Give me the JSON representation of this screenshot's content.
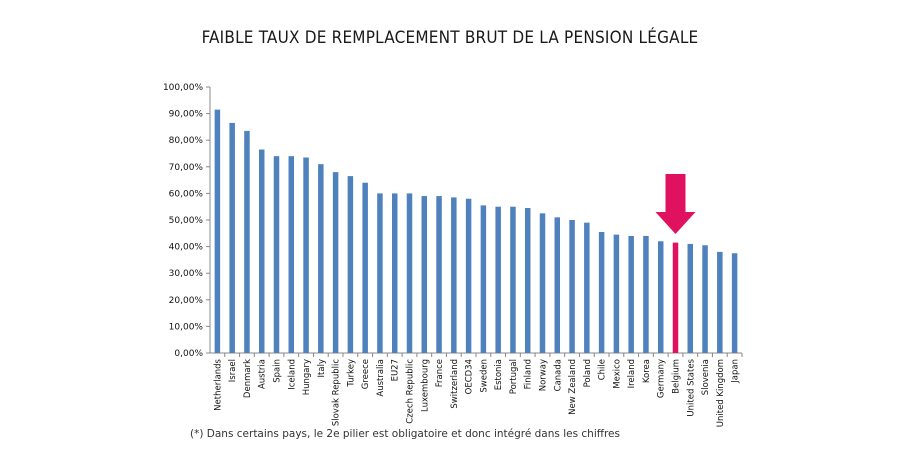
{
  "title": "FAIBLE TAUX DE REMPLACEMENT BRUT DE LA PENSION LÉGALE",
  "footnote": "(*) Dans certains pays, le 2e pilier est obligatoire et donc intégré dans les chiffres",
  "chart_data": {
    "type": "bar",
    "title": "FAIBLE TAUX DE REMPLACEMENT BRUT DE LA PENSION LÉGALE",
    "xlabel": "",
    "ylabel": "",
    "ylim": [
      0,
      100
    ],
    "yticks": [
      "0,00%",
      "10,00%",
      "20,00%",
      "30,00%",
      "40,00%",
      "50,00%",
      "60,00%",
      "70,00%",
      "80,00%",
      "90,00%",
      "100,00%"
    ],
    "grid": false,
    "bar_color": "#4f81bd",
    "highlight_color": "#e0115f",
    "highlight_category": "Belgium",
    "categories": [
      "Netherlands",
      "Israel",
      "Denmark",
      "Austria",
      "Spain",
      "Iceland",
      "Hungary",
      "Italy",
      "Slovak Republic",
      "Turkey",
      "Greece",
      "Australia",
      "EU27",
      "Czech Republic",
      "Luxembourg",
      "France",
      "Switzerland",
      "OECD34",
      "Sweden",
      "Estonia",
      "Portugal",
      "Finland",
      "Norway",
      "Canada",
      "New Zealand",
      "Poland",
      "Chile",
      "Mexico",
      "Ireland",
      "Korea",
      "Germany",
      "Belgium",
      "United States",
      "Slovenia",
      "United Kingdom",
      "Japan"
    ],
    "values": [
      91.5,
      86.5,
      83.5,
      76.5,
      74.0,
      74.0,
      73.5,
      71.0,
      68.0,
      66.5,
      64.0,
      60.0,
      60.0,
      60.0,
      59.0,
      59.0,
      58.5,
      58.0,
      55.5,
      55.0,
      55.0,
      54.5,
      52.5,
      51.0,
      50.0,
      49.0,
      45.5,
      44.5,
      44.0,
      44.0,
      42.0,
      41.5,
      41.0,
      40.5,
      38.0,
      37.5
    ]
  }
}
